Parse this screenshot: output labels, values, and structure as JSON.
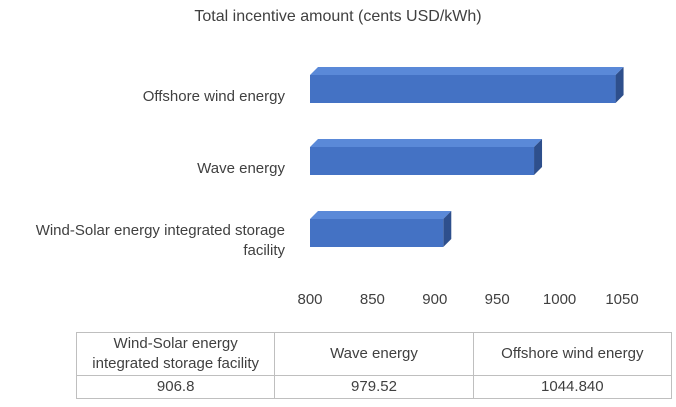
{
  "chart_data": {
    "type": "bar3d",
    "title": "Total incentive amount (cents USD/kWh)",
    "categories": [
      "Wind-Solar energy integrated storage facility",
      "Wave energy",
      "Offshore wind energy"
    ],
    "values": [
      906.8,
      979.52,
      1044.84
    ],
    "value_labels": [
      "906.8",
      "979.52",
      "1044.840"
    ],
    "color": "#4472c4",
    "xlim": [
      800,
      1050
    ],
    "xticks": [
      800,
      850,
      900,
      950,
      1000,
      1050
    ],
    "grid": false
  }
}
